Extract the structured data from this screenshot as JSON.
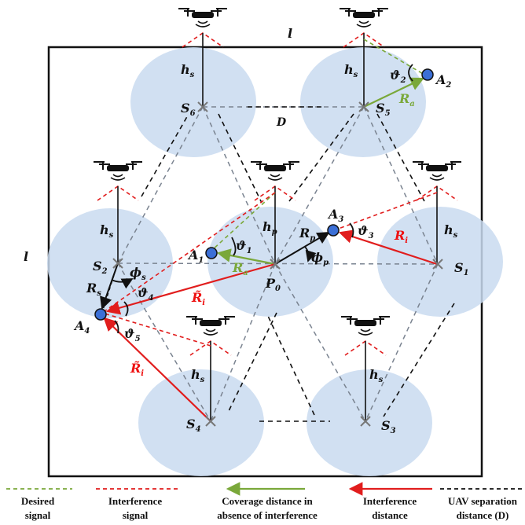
{
  "labels": {
    "side_top": "l",
    "side_left": "l",
    "hs": "h",
    "hs_sub": "s",
    "hp": "h",
    "hp_sub": "p",
    "D": "D",
    "S6": "S",
    "S6_sub": "6",
    "S5": "S",
    "S5_sub": "5",
    "S2": "S",
    "S2_sub": "2",
    "S1": "S",
    "S1_sub": "1",
    "S4": "S",
    "S4_sub": "4",
    "S3": "S",
    "S3_sub": "3",
    "P0": "P",
    "P0_sub": "0",
    "A1": "A",
    "A1_sub": "1",
    "A2": "A",
    "A2_sub": "2",
    "A3": "A",
    "A3_sub": "3",
    "A4": "A",
    "A4_sub": "4",
    "theta1": "ϑ",
    "theta1_sub": "1",
    "theta2": "ϑ",
    "theta2_sub": "2",
    "theta3": "ϑ",
    "theta3_sub": "3",
    "theta4": "ϑ",
    "theta4_sub": "4",
    "theta5": "ϑ",
    "theta5_sub": "5",
    "Ra": "R",
    "Ra_sub": "a",
    "Rp": "R",
    "Rp_sub": "p",
    "Ri": "R",
    "Ri_sub": "i",
    "Ri_tilde": "R̃",
    "Rs": "R",
    "Rs_sub": "s",
    "phi_p": "ϕ",
    "phi_p_sub": "p",
    "phi_s": "ϕ",
    "phi_s_sub": "s"
  },
  "legend": [
    {
      "line1": "Desired",
      "line2": "signal",
      "style": "green-dashed"
    },
    {
      "line1": "Interference",
      "line2": "signal",
      "style": "red-dashed"
    },
    {
      "line1": "Coverage distance in",
      "line2": "absence of interference",
      "style": "green-arrow"
    },
    {
      "line1": "Interference",
      "line2": "distance",
      "style": "red-arrow"
    },
    {
      "line1": "UAV separation",
      "line2": "distance (D)",
      "style": "black-dashed"
    }
  ],
  "colors": {
    "cell": "#c9daf0",
    "desired": "#7aa83a",
    "interference": "#e11d1d",
    "separation": "#111111",
    "user": "#3b6fd6"
  }
}
